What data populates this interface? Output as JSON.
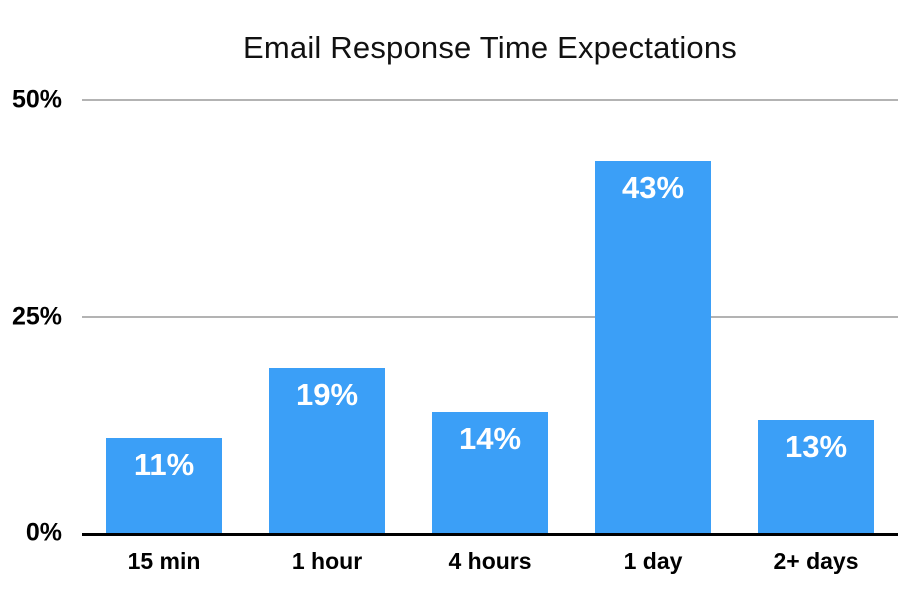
{
  "chart_data": {
    "type": "bar",
    "title": "Email Response Time Expectations",
    "categories": [
      "15 min",
      "1 hour",
      "4 hours",
      "1 day",
      "2+ days"
    ],
    "values": [
      11,
      19,
      14,
      43,
      13
    ],
    "value_labels": [
      "11%",
      "19%",
      "14%",
      "43%",
      "13%"
    ],
    "xlabel": "",
    "ylabel": "",
    "ylim": [
      0,
      50
    ],
    "yticks": [
      {
        "value": 0,
        "label": "0%"
      },
      {
        "value": 25,
        "label": "25%"
      },
      {
        "value": 50,
        "label": "50%"
      }
    ],
    "legend": "none",
    "grid": "horizontal-partial",
    "colors": {
      "bar": "#3B9FF7",
      "gridline": "#B3B3B3",
      "axis": "#000000",
      "value_label": "#FFFFFF",
      "title_text": "#111111",
      "tick_text": "#000000"
    }
  }
}
